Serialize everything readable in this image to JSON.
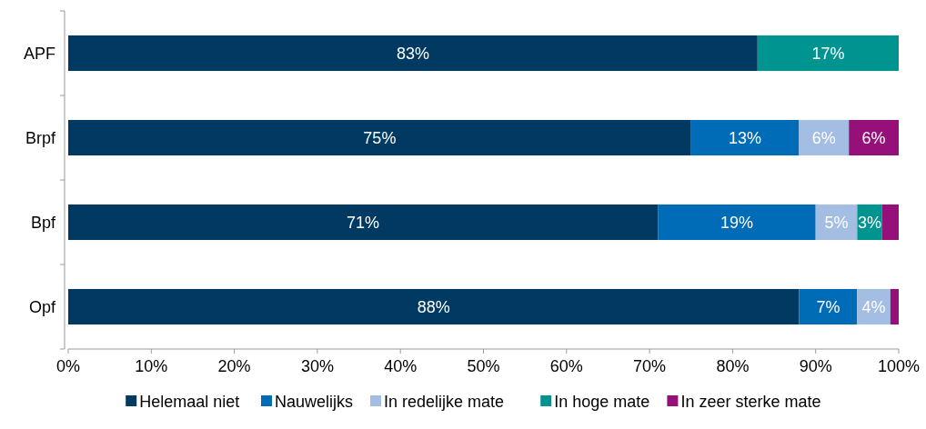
{
  "chart_data": {
    "type": "bar",
    "orientation": "horizontal",
    "stacked": true,
    "categories": [
      "APF",
      "Brpf",
      "Bpf",
      "Opf"
    ],
    "series": [
      {
        "name": "Helemaal niet",
        "color": "#003a63",
        "values": [
          83,
          75,
          71,
          88
        ],
        "value_labels": [
          "83%",
          "75%",
          "71%",
          "88%"
        ]
      },
      {
        "name": "Nauwelijks",
        "color": "#006bb6",
        "values": [
          null,
          13,
          19,
          7
        ],
        "value_labels": [
          null,
          "13%",
          "19%",
          "7%"
        ]
      },
      {
        "name": "In redelijke mate",
        "color": "#a3bde3",
        "values": [
          null,
          6,
          5,
          4
        ],
        "value_labels": [
          null,
          "6%",
          "5%",
          "4%"
        ]
      },
      {
        "name": "In hoge mate",
        "color": "#009490",
        "values": [
          17,
          null,
          3,
          null
        ],
        "value_labels": [
          "17%",
          null,
          "3%",
          null
        ]
      },
      {
        "name": "In zeer sterke mate",
        "color": "#951078",
        "values": [
          null,
          6,
          2,
          1
        ],
        "value_labels": [
          null,
          "6%",
          null,
          null
        ]
      }
    ],
    "xlim": [
      0,
      100
    ],
    "xticks": [
      {
        "value": 0,
        "label": "0%"
      },
      {
        "value": 10,
        "label": "10%"
      },
      {
        "value": 20,
        "label": "20%"
      },
      {
        "value": 30,
        "label": "30%"
      },
      {
        "value": 40,
        "label": "40%"
      },
      {
        "value": 50,
        "label": "50%"
      },
      {
        "value": 60,
        "label": "60%"
      },
      {
        "value": 70,
        "label": "70%"
      },
      {
        "value": 80,
        "label": "80%"
      },
      {
        "value": 90,
        "label": "90%"
      },
      {
        "value": 100,
        "label": "100%"
      }
    ],
    "grid": false,
    "legend": "bottom"
  }
}
